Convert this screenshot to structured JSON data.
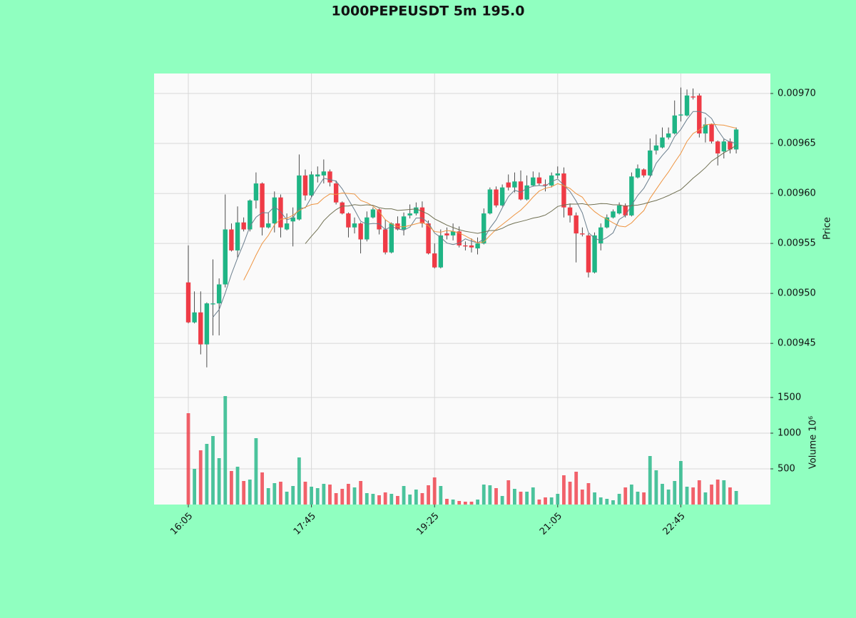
{
  "chart_data": {
    "type": "candlestick",
    "title": "1000PEPEUSDT 5m 195.0",
    "ylabel": "Price",
    "up_color": "#1fb585",
    "down_color": "#ef3b46",
    "grid": true,
    "categories": [
      "16:05",
      null,
      null,
      null,
      null,
      null,
      null,
      null,
      null,
      null,
      null,
      null,
      null,
      null,
      null,
      null,
      null,
      null,
      null,
      null,
      "17:45",
      null,
      null,
      null,
      null,
      null,
      null,
      null,
      null,
      null,
      null,
      null,
      null,
      null,
      null,
      null,
      null,
      null,
      null,
      null,
      "19:25",
      null,
      null,
      null,
      null,
      null,
      null,
      null,
      null,
      null,
      null,
      null,
      null,
      null,
      null,
      null,
      null,
      null,
      null,
      null,
      "21:05",
      null,
      null,
      null,
      null,
      null,
      null,
      null,
      null,
      null,
      null,
      null,
      null,
      null,
      null,
      null,
      null,
      null,
      null,
      null,
      "22:45",
      null,
      null,
      null,
      null,
      null,
      null,
      null,
      null,
      null
    ],
    "open": [
      0.009511,
      0.009471,
      0.009481,
      0.009449,
      0.009489,
      0.00949,
      0.009509,
      0.009564,
      0.009543,
      0.009571,
      0.009564,
      0.009593,
      0.00961,
      0.009566,
      0.00957,
      0.009596,
      0.009564,
      0.009572,
      0.009574,
      0.009618,
      0.009598,
      0.009617,
      0.009618,
      0.009622,
      0.00961,
      0.009591,
      0.00958,
      0.009566,
      0.00957,
      0.009554,
      0.009576,
      0.009584,
      0.009564,
      0.009541,
      0.00957,
      0.009564,
      0.009578,
      0.00958,
      0.009586,
      0.00957,
      0.00954,
      0.009526,
      0.00956,
      0.009558,
      0.009562,
      0.009548,
      0.009548,
      0.009545,
      0.00955,
      0.00958,
      0.009604,
      0.009588,
      0.009611,
      0.009606,
      0.009612,
      0.009594,
      0.009608,
      0.009616,
      0.009609,
      0.009608,
      0.009618,
      0.00962,
      0.009586,
      0.009578,
      0.00956,
      0.009558,
      0.009521,
      0.00955,
      0.009566,
      0.009576,
      0.00958,
      0.009588,
      0.009578,
      0.009616,
      0.009624,
      0.009618,
      0.009643,
      0.009646,
      0.009656,
      0.00966,
      0.009678,
      0.009678,
      0.009697,
      0.009698,
      0.00966,
      0.009669,
      0.009652,
      0.009642,
      0.009652,
      0.009644
    ],
    "high": [
      0.009548,
      0.009502,
      0.009502,
      0.009491,
      0.009534,
      0.009515,
      0.009599,
      0.00957,
      0.009587,
      0.009576,
      0.009594,
      0.009621,
      0.009611,
      0.009581,
      0.009602,
      0.009599,
      0.00958,
      0.009586,
      0.009639,
      0.009624,
      0.009622,
      0.009627,
      0.009634,
      0.009624,
      0.009613,
      0.009592,
      0.009581,
      0.009576,
      0.009571,
      0.009582,
      0.009586,
      0.009585,
      0.009574,
      0.009571,
      0.009577,
      0.009581,
      0.009589,
      0.009591,
      0.009592,
      0.009573,
      0.00955,
      0.009564,
      0.009566,
      0.00957,
      0.009567,
      0.009552,
      0.009555,
      0.009556,
      0.009585,
      0.009606,
      0.009607,
      0.009609,
      0.009619,
      0.009621,
      0.009623,
      0.009618,
      0.009622,
      0.009621,
      0.009614,
      0.009621,
      0.009627,
      0.009626,
      0.00959,
      0.009581,
      0.009566,
      0.00956,
      0.009561,
      0.00957,
      0.009579,
      0.009584,
      0.009591,
      0.00959,
      0.009621,
      0.009629,
      0.009625,
      0.009655,
      0.009659,
      0.009666,
      0.009666,
      0.009693,
      0.009706,
      0.009704,
      0.009705,
      0.0097,
      0.009676,
      0.00967,
      0.009653,
      0.009655,
      0.009655,
      0.009666
    ],
    "low": [
      0.00947,
      0.00947,
      0.009439,
      0.009426,
      0.009458,
      0.009458,
      0.009506,
      0.009542,
      0.009536,
      0.009562,
      0.009562,
      0.009585,
      0.009558,
      0.009565,
      0.009561,
      0.009556,
      0.009563,
      0.009547,
      0.009573,
      0.009593,
      0.009596,
      0.009611,
      0.00961,
      0.009607,
      0.009589,
      0.009579,
      0.009556,
      0.00956,
      0.00954,
      0.009552,
      0.009575,
      0.009559,
      0.009539,
      0.00954,
      0.009563,
      0.009558,
      0.009575,
      0.009578,
      0.009566,
      0.009539,
      0.009525,
      0.009525,
      0.009554,
      0.009553,
      0.009546,
      0.009543,
      0.009541,
      0.009539,
      0.009549,
      0.009579,
      0.009586,
      0.009587,
      0.009603,
      0.009601,
      0.009593,
      0.009593,
      0.009607,
      0.009608,
      0.009602,
      0.009606,
      0.009615,
      0.009576,
      0.009571,
      0.009531,
      0.009557,
      0.009516,
      0.00952,
      0.009543,
      0.009565,
      0.009575,
      0.009579,
      0.009576,
      0.009577,
      0.009615,
      0.009616,
      0.009617,
      0.009639,
      0.009645,
      0.009654,
      0.009659,
      0.009672,
      0.009677,
      0.009694,
      0.009656,
      0.009651,
      0.00965,
      0.009628,
      0.009635,
      0.00964,
      0.00964
    ],
    "close": [
      0.009471,
      0.009481,
      0.009449,
      0.00949,
      0.00949,
      0.009509,
      0.009564,
      0.009543,
      0.009571,
      0.009564,
      0.009593,
      0.00961,
      0.009566,
      0.00957,
      0.009596,
      0.009566,
      0.00957,
      0.009576,
      0.009618,
      0.009598,
      0.009619,
      0.009619,
      0.009622,
      0.009611,
      0.009591,
      0.00958,
      0.009566,
      0.00957,
      0.009554,
      0.009576,
      0.009584,
      0.009564,
      0.009541,
      0.00957,
      0.009564,
      0.009577,
      0.00958,
      0.009586,
      0.00957,
      0.00954,
      0.009526,
      0.009558,
      0.009558,
      0.009562,
      0.009548,
      0.009547,
      0.009546,
      0.00955,
      0.00958,
      0.009604,
      0.009588,
      0.009606,
      0.009606,
      0.009612,
      0.009594,
      0.009608,
      0.009616,
      0.00961,
      0.009608,
      0.009618,
      0.00962,
      0.009586,
      0.009578,
      0.00956,
      0.009559,
      0.009521,
      0.009558,
      0.009566,
      0.009576,
      0.009582,
      0.009588,
      0.009578,
      0.009617,
      0.009625,
      0.009618,
      0.009643,
      0.009648,
      0.009656,
      0.00966,
      0.009678,
      0.009679,
      0.009698,
      0.009696,
      0.00966,
      0.009669,
      0.009652,
      0.00964,
      0.009652,
      0.009644,
      0.009664
    ],
    "mav": [
      {
        "color": "#6b7f8e",
        "values": [
          null,
          null,
          null,
          null,
          0.0094762,
          0.0094838,
          0.0095004,
          0.0095192,
          0.0095354,
          0.0095502,
          0.009567,
          0.0095762,
          0.0095808,
          0.0095806,
          0.009587,
          0.0095816,
          0.0095736,
          0.0095756,
          0.0095852,
          0.0095856,
          0.0095962,
          0.009606,
          0.0096152,
          0.0096138,
          0.0096124,
          0.0096046,
          0.009594,
          0.0095836,
          0.0095722,
          0.0095692,
          0.00957,
          0.0095696,
          0.0095638,
          0.009567,
          0.0095646,
          0.0095632,
          0.0095664,
          0.0095754,
          0.0095754,
          0.0095706,
          0.0095604,
          0.009556,
          0.0095504,
          0.0095488,
          0.0095504,
          0.0095546,
          0.0095522,
          0.0095506,
          0.0095542,
          0.0095654,
          0.0095736,
          0.0095856,
          0.0095968,
          0.0096032,
          0.0096012,
          0.0096052,
          0.0096072,
          0.009608,
          0.0096072,
          0.009612,
          0.0096144,
          0.0096084,
          0.009602,
          0.0095924,
          0.0095806,
          0.0095608,
          0.0095552,
          0.0095528,
          0.009556,
          0.0095606,
          0.009574,
          0.009578,
          0.0095882,
          0.009598,
          0.0096052,
          0.0096162,
          0.0096302,
          0.009638,
          0.009645,
          0.009657,
          0.009664,
          0.009674,
          0.009682,
          0.009682,
          0.0096802,
          0.009675,
          0.0096634,
          0.0096546,
          0.0096514,
          0.0096504
        ]
      },
      {
        "color": "#ee9440",
        "values": [
          null,
          null,
          null,
          null,
          null,
          null,
          null,
          null,
          null,
          0.0095132,
          0.0095254,
          0.0095383,
          0.00955,
          0.009558,
          0.0095686,
          0.0095743,
          0.0095749,
          0.0095782,
          0.0095829,
          0.0095863,
          0.0095889,
          0.0095898,
          0.0095954,
          0.0095995,
          0.009599,
          0.0096004,
          0.0096,
          0.0095994,
          0.009593,
          0.0095908,
          0.0095873,
          0.0095818,
          0.0095737,
          0.0095696,
          0.0095669,
          0.0095666,
          0.009568,
          0.0095696,
          0.0095712,
          0.0095676,
          0.0095618,
          0.0095612,
          0.0095629,
          0.0095621,
          0.0095605,
          0.0095575,
          0.0095541,
          0.0095505,
          0.0095515,
          0.0095579,
          0.0095641,
          0.0095689,
          0.0095737,
          0.0095787,
          0.0095833,
          0.0095894,
          0.0095964,
          0.0096024,
          0.0096052,
          0.0096066,
          0.0096098,
          0.0096078,
          0.009605,
          0.0095998,
          0.0095963,
          0.0095876,
          0.0095818,
          0.0095774,
          0.0095742,
          0.0095706,
          0.0095674,
          0.0095666,
          0.0095705,
          0.009577,
          0.0095829,
          0.0095951,
          0.0096041,
          0.0096131,
          0.0096215,
          0.0096311,
          0.0096401,
          0.0096521,
          0.00966,
          0.0096635,
          0.0096686,
          0.0096695,
          0.0096687,
          0.0096683,
          0.0096667,
          0.0096653
        ]
      },
      {
        "color": "#707052",
        "values": [
          null,
          null,
          null,
          null,
          null,
          null,
          null,
          null,
          null,
          null,
          null,
          null,
          null,
          null,
          null,
          null,
          null,
          null,
          null,
          0.0095498,
          0.0095572,
          0.0095641,
          0.0095727,
          0.0095788,
          0.0095838,
          0.0095874,
          0.0095875,
          0.0095888,
          0.009588,
          0.0095886,
          0.0095881,
          0.0095858,
          0.0095846,
          0.0095846,
          0.009583,
          0.0095835,
          0.009584,
          0.0095845,
          0.0095821,
          0.0095792,
          0.0095746,
          0.0095715,
          0.0095683,
          0.0095659,
          0.0095637,
          0.0095621,
          0.0095611,
          0.0095601,
          0.0095614,
          0.0095628,
          0.009563,
          0.0095651,
          0.0095683,
          0.0095704,
          0.0095719,
          0.0095735,
          0.0095753,
          0.0095765,
          0.0095784,
          0.0095823,
          0.009587,
          0.0095884,
          0.0095894,
          0.0095893,
          0.0095898,
          0.0095885,
          0.0095891,
          0.0095899,
          0.0095897,
          0.0095886,
          0.0095886,
          0.0095872,
          0.0095878,
          0.0095884,
          0.0095896,
          0.0095914,
          0.009593,
          0.0095953,
          0.0095979,
          0.0096009,
          0.0096038,
          0.0096094,
          0.0096153,
          0.0096203,
          0.0096258,
          0.0096323,
          0.0096364,
          0.0096407,
          0.0096441,
          0.0096482
        ]
      }
    ],
    "ylim": [
      0.009408,
      0.00972
    ],
    "yticks": [
      {
        "value": 0.00945,
        "label": "0.00945"
      },
      {
        "value": 0.0095,
        "label": "0.00950"
      },
      {
        "value": 0.00955,
        "label": "0.00955"
      },
      {
        "value": 0.0096,
        "label": "0.00960"
      },
      {
        "value": 0.00965,
        "label": "0.00965"
      },
      {
        "value": 0.0097,
        "label": "0.00970"
      }
    ],
    "volume": {
      "label": "Volume  10⁶",
      "ylim": [
        0,
        1670
      ],
      "yticks": [
        500,
        1000,
        1500
      ],
      "values": [
        1280,
        500,
        760,
        850,
        960,
        650,
        1520,
        470,
        530,
        330,
        350,
        930,
        450,
        230,
        300,
        320,
        180,
        260,
        660,
        320,
        250,
        230,
        290,
        280,
        160,
        220,
        290,
        240,
        330,
        160,
        150,
        130,
        170,
        150,
        120,
        260,
        140,
        210,
        160,
        270,
        380,
        260,
        80,
        70,
        50,
        40,
        40,
        70,
        280,
        270,
        230,
        120,
        340,
        220,
        180,
        180,
        240,
        70,
        100,
        100,
        150,
        410,
        320,
        460,
        210,
        300,
        170,
        100,
        80,
        60,
        150,
        240,
        280,
        180,
        170,
        680,
        480,
        290,
        210,
        330,
        610,
        250,
        240,
        340,
        170,
        280,
        350,
        340,
        240,
        190
      ]
    }
  }
}
